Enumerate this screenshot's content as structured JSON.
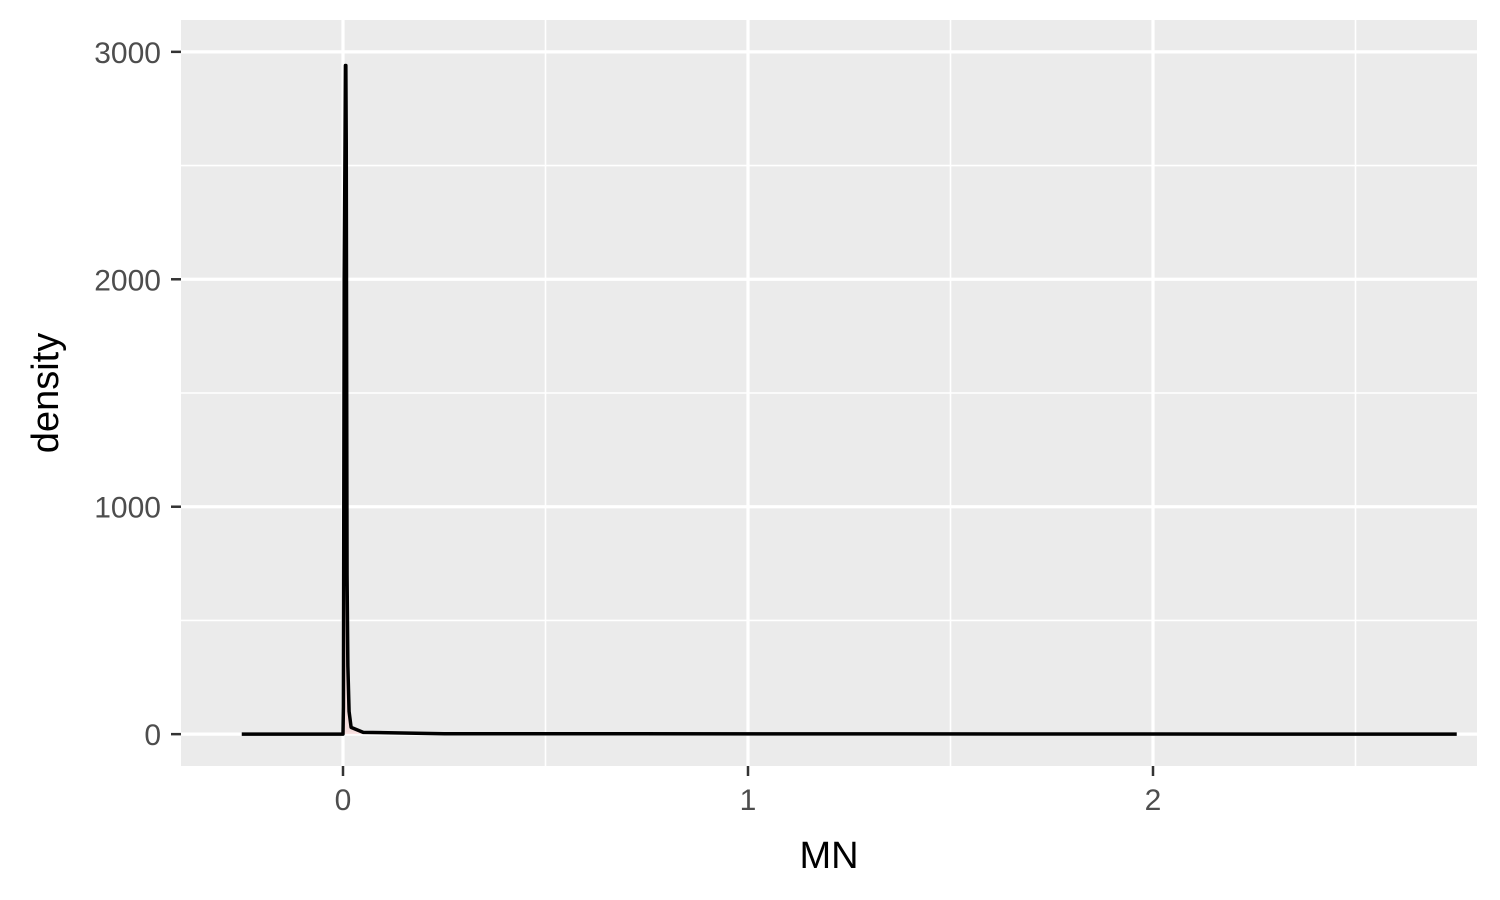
{
  "chart_data": {
    "type": "area",
    "title": "",
    "xlabel": "MN",
    "ylabel": "density",
    "xlim": [
      -0.4,
      2.8
    ],
    "ylim": [
      -140,
      3140
    ],
    "x_ticks": [
      0,
      1,
      2
    ],
    "x_minor_ticks": [
      0.5,
      1.5,
      2.5
    ],
    "y_ticks": [
      0,
      1000,
      2000,
      3000
    ],
    "y_minor_ticks": [
      500,
      1500,
      2500
    ],
    "x_tick_labels": [
      "0",
      "1",
      "2"
    ],
    "y_tick_labels": [
      "0",
      "1000",
      "2000",
      "3000"
    ],
    "grid": true,
    "legend": "none",
    "colors": {
      "panel": "#ebebeb",
      "grid": "#ffffff",
      "line": "#000000",
      "fill": "#f8d0d0"
    },
    "series": [
      {
        "x": [
          -0.25,
          0.0,
          0.001,
          0.002,
          0.003,
          0.004,
          0.005,
          0.006,
          0.007,
          0.008,
          0.009,
          0.01,
          0.012,
          0.015,
          0.02,
          0.05,
          0.25,
          2.75
        ],
        "y": [
          0,
          0,
          120,
          1050,
          2000,
          2300,
          2600,
          2940,
          2940,
          2600,
          1600,
          700,
          300,
          100,
          30,
          8,
          2,
          0
        ]
      }
    ]
  }
}
